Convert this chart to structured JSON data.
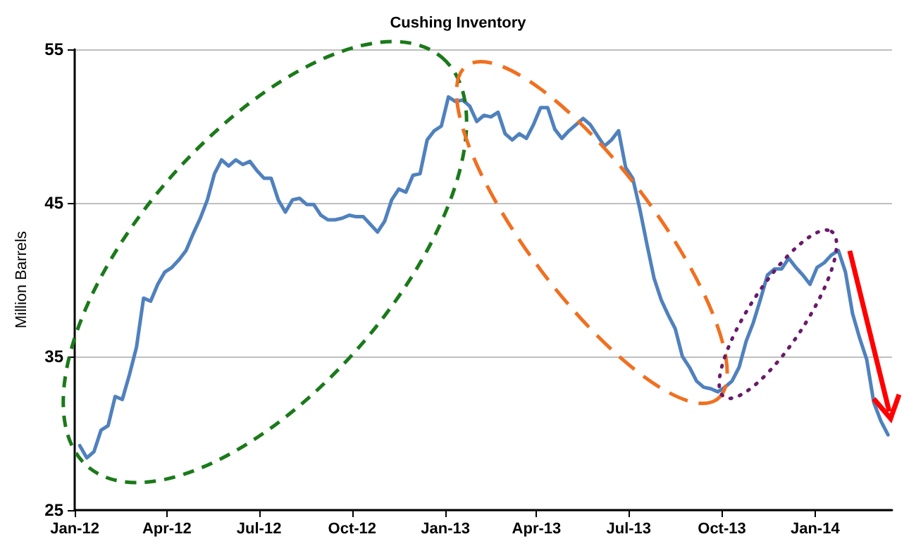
{
  "chart_data": {
    "type": "line",
    "title": "Cushing Inventory",
    "ylabel": "Million Barrels",
    "x": [
      "2012-01-06",
      "2012-01-13",
      "2012-01-20",
      "2012-01-27",
      "2012-02-03",
      "2012-02-10",
      "2012-02-17",
      "2012-02-24",
      "2012-03-02",
      "2012-03-09",
      "2012-03-16",
      "2012-03-23",
      "2012-03-30",
      "2012-04-06",
      "2012-04-13",
      "2012-04-20",
      "2012-04-27",
      "2012-05-04",
      "2012-05-11",
      "2012-05-18",
      "2012-05-25",
      "2012-06-01",
      "2012-06-08",
      "2012-06-15",
      "2012-06-22",
      "2012-06-29",
      "2012-07-06",
      "2012-07-13",
      "2012-07-20",
      "2012-07-27",
      "2012-08-03",
      "2012-08-10",
      "2012-08-17",
      "2012-08-24",
      "2012-08-31",
      "2012-09-07",
      "2012-09-14",
      "2012-09-21",
      "2012-09-28",
      "2012-10-05",
      "2012-10-12",
      "2012-10-19",
      "2012-10-26",
      "2012-11-02",
      "2012-11-09",
      "2012-11-16",
      "2012-11-23",
      "2012-11-30",
      "2012-12-07",
      "2012-12-14",
      "2012-12-21",
      "2012-12-28",
      "2013-01-04",
      "2013-01-11",
      "2013-01-18",
      "2013-01-25",
      "2013-02-01",
      "2013-02-08",
      "2013-02-15",
      "2013-02-22",
      "2013-03-01",
      "2013-03-08",
      "2013-03-15",
      "2013-03-22",
      "2013-03-29",
      "2013-04-05",
      "2013-04-12",
      "2013-04-19",
      "2013-04-26",
      "2013-05-03",
      "2013-05-10",
      "2013-05-17",
      "2013-05-24",
      "2013-05-31",
      "2013-06-07",
      "2013-06-14",
      "2013-06-21",
      "2013-06-28",
      "2013-07-05",
      "2013-07-12",
      "2013-07-19",
      "2013-07-26",
      "2013-08-02",
      "2013-08-09",
      "2013-08-16",
      "2013-08-23",
      "2013-08-30",
      "2013-09-06",
      "2013-09-13",
      "2013-09-20",
      "2013-09-27",
      "2013-10-04",
      "2013-10-11",
      "2013-10-18",
      "2013-10-25",
      "2013-11-01",
      "2013-11-08",
      "2013-11-15",
      "2013-11-22",
      "2013-11-29",
      "2013-12-06",
      "2013-12-13",
      "2013-12-20",
      "2013-12-27",
      "2014-01-03",
      "2014-01-10",
      "2014-01-17",
      "2014-01-24",
      "2014-01-31",
      "2014-02-07",
      "2014-02-14",
      "2014-02-21",
      "2014-02-28",
      "2014-03-07",
      "2014-03-14"
    ],
    "series": [
      {
        "color": "#4f81bd",
        "values": [
          29.2,
          28.4,
          28.8,
          30.2,
          30.5,
          32.4,
          32.2,
          33.8,
          35.6,
          38.8,
          38.6,
          39.7,
          40.5,
          40.8,
          41.3,
          41.9,
          43.0,
          44.0,
          45.2,
          46.9,
          47.8,
          47.4,
          47.8,
          47.5,
          47.7,
          47.1,
          46.6,
          46.6,
          45.2,
          44.4,
          45.2,
          45.3,
          44.9,
          44.9,
          44.2,
          43.9,
          43.9,
          44.0,
          44.2,
          44.1,
          44.1,
          43.6,
          43.1,
          43.8,
          45.2,
          45.9,
          45.7,
          46.8,
          46.9,
          49.1,
          49.7,
          50.0,
          51.9,
          51.6,
          51.7,
          51.3,
          50.3,
          50.7,
          50.6,
          50.9,
          49.5,
          49.1,
          49.5,
          49.2,
          50.1,
          51.2,
          51.2,
          49.8,
          49.2,
          49.7,
          50.1,
          50.5,
          50.1,
          49.4,
          48.7,
          49.1,
          49.7,
          47.3,
          46.6,
          44.6,
          42.3,
          40.1,
          38.7,
          37.7,
          36.8,
          35.0,
          34.3,
          33.4,
          33.0,
          32.9,
          32.7,
          33.0,
          33.4,
          34.3,
          36.0,
          37.2,
          38.7,
          40.3,
          40.7,
          40.7,
          41.4,
          40.8,
          40.3,
          39.7,
          40.8,
          41.1,
          41.6,
          41.9,
          40.5,
          37.8,
          36.2,
          34.8,
          32.0,
          30.8,
          29.9
        ]
      }
    ],
    "xlim": [
      "2012-01-01",
      "2014-03-18"
    ],
    "xticks": [
      {
        "value": "2012-01-01",
        "label": "Jan-12"
      },
      {
        "value": "2012-04-01",
        "label": "Apr-12"
      },
      {
        "value": "2012-07-01",
        "label": "Jul-12"
      },
      {
        "value": "2012-10-01",
        "label": "Oct-12"
      },
      {
        "value": "2013-01-01",
        "label": "Jan-13"
      },
      {
        "value": "2013-04-01",
        "label": "Apr-13"
      },
      {
        "value": "2013-07-01",
        "label": "Jul-13"
      },
      {
        "value": "2013-10-01",
        "label": "Oct-13"
      },
      {
        "value": "2014-01-01",
        "label": "Jan-14"
      }
    ],
    "ylim": [
      25,
      55
    ],
    "yticks": [
      25,
      35,
      45,
      55
    ],
    "grid": "y",
    "marker": "none",
    "line_style": "solid"
  }
}
